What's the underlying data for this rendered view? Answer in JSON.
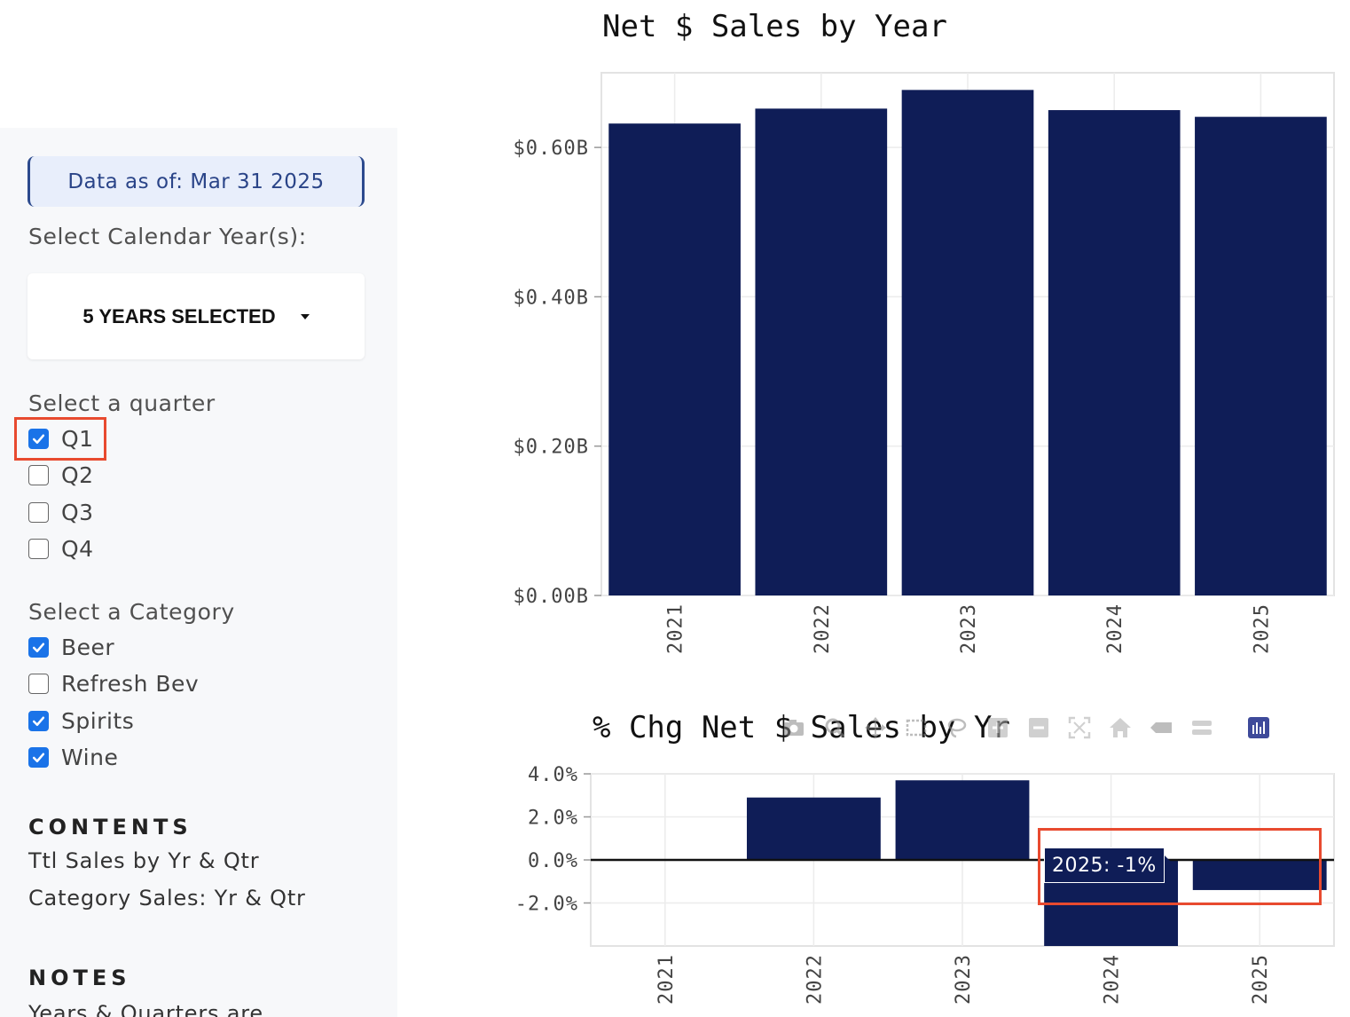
{
  "sidebar": {
    "data_as_of": "Data as of: Mar 31 2025",
    "year_label": "Select Calendar Year(s):",
    "year_dropdown": "5 YEARS SELECTED",
    "quarter_label": "Select a quarter",
    "quarters": [
      {
        "label": "Q1",
        "checked": true
      },
      {
        "label": "Q2",
        "checked": false
      },
      {
        "label": "Q3",
        "checked": false
      },
      {
        "label": "Q4",
        "checked": false
      }
    ],
    "category_label": "Select a Category",
    "categories": [
      {
        "label": "Beer",
        "checked": true
      },
      {
        "label": "Refresh Bev",
        "checked": false
      },
      {
        "label": "Spirits",
        "checked": true
      },
      {
        "label": "Wine",
        "checked": true
      }
    ],
    "contents_heading": "CONTENTS",
    "contents_items": [
      "Ttl Sales by Yr & Qtr",
      "Category Sales: Yr & Qtr"
    ],
    "notes_heading": "NOTES",
    "notes_text": "Years & Quarters are"
  },
  "tooltip": {
    "text": "2025: -1%"
  },
  "modebar": {
    "icons": [
      "camera-icon",
      "zoom-icon",
      "pan-icon",
      "box-select-icon",
      "lasso-icon",
      "zoom-in-icon",
      "zoom-out-icon",
      "autoscale-icon",
      "reset-axes-icon",
      "spike-lines-icon",
      "hover-closest-icon",
      "hover-compare-icon",
      "plotly-logo-icon"
    ]
  },
  "colors": {
    "bar": "#0f1d57",
    "accent": "#1a73e8",
    "highlight": "#e84a2f"
  },
  "chart_data": [
    {
      "type": "bar",
      "title": "Net $ Sales by Year",
      "categories": [
        "2021",
        "2022",
        "2023",
        "2024",
        "2025"
      ],
      "values": [
        0.632,
        0.652,
        0.677,
        0.65,
        0.641
      ],
      "ylim": [
        0,
        0.7
      ],
      "yticks": [
        0,
        0.2,
        0.4,
        0.6
      ],
      "ytick_labels": [
        "$0.00B",
        "$0.20B",
        "$0.40B",
        "$0.60B"
      ],
      "grid": true
    },
    {
      "type": "bar",
      "title": "% Chg Net $ Sales by Yr",
      "categories": [
        "2021",
        "2022",
        "2023",
        "2024",
        "2025"
      ],
      "values": [
        0,
        2.9,
        3.7,
        -4.0,
        -1.4
      ],
      "ylim": [
        -4.0,
        4.0
      ],
      "yticks": [
        -2,
        0,
        2,
        4
      ],
      "ytick_labels": [
        "-2.0%",
        "0.0%",
        "2.0%",
        "4.0%"
      ],
      "grid": true
    }
  ]
}
